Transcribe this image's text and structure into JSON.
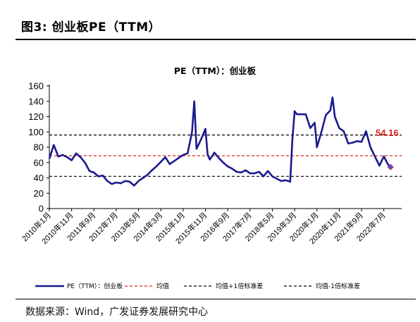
{
  "figure": {
    "title": "图3:  创业板PE（TTM）",
    "source": "数据来源：Wind，广发证券发展研究中心"
  },
  "colors": {
    "series": "#1a1a8c",
    "mean": "#e02020",
    "band": "#000000",
    "annotation": "#e02020"
  },
  "chart_data": {
    "type": "line",
    "title": "PE（TTM）：创业板",
    "ylim": [
      0,
      160
    ],
    "yticks": [
      0,
      20,
      40,
      60,
      80,
      100,
      120,
      140,
      160
    ],
    "xticks": [
      "2010年1月",
      "2010年11月",
      "2011年9月",
      "2012年7月",
      "2013年5月",
      "2014年3月",
      "2015年1月",
      "2015年11月",
      "2016年9月",
      "2017年7月",
      "2018年5月",
      "2019年3月",
      "2020年1月",
      "2020年11月",
      "2021年9月",
      "2022年7月"
    ],
    "grid": false,
    "legend_position": "bottom",
    "series": [
      {
        "name": "PE（TTM）：创业板",
        "x": [
          "2010-01",
          "2010-03",
          "2010-05",
          "2010-07",
          "2010-09",
          "2010-11",
          "2011-01",
          "2011-03",
          "2011-05",
          "2011-07",
          "2011-09",
          "2011-11",
          "2012-01",
          "2012-03",
          "2012-05",
          "2012-07",
          "2012-09",
          "2012-11",
          "2013-01",
          "2013-03",
          "2013-05",
          "2013-07",
          "2013-09",
          "2013-11",
          "2014-01",
          "2014-03",
          "2014-05",
          "2014-07",
          "2014-09",
          "2014-11",
          "2015-01",
          "2015-03",
          "2015-05",
          "2015-06",
          "2015-07",
          "2015-09",
          "2015-11",
          "2015-12",
          "2016-01",
          "2016-03",
          "2016-05",
          "2016-07",
          "2016-09",
          "2016-11",
          "2017-01",
          "2017-03",
          "2017-05",
          "2017-07",
          "2017-09",
          "2017-11",
          "2018-01",
          "2018-03",
          "2018-05",
          "2018-07",
          "2018-09",
          "2018-11",
          "2019-01",
          "2019-02",
          "2019-03",
          "2019-04",
          "2019-06",
          "2019-08",
          "2019-10",
          "2019-12",
          "2020-01",
          "2020-03",
          "2020-05",
          "2020-07",
          "2020-08",
          "2020-09",
          "2020-11",
          "2021-01",
          "2021-03",
          "2021-05",
          "2021-07",
          "2021-09",
          "2021-11",
          "2022-01",
          "2022-03",
          "2022-05",
          "2022-07",
          "2022-09",
          "2022-10"
        ],
        "values": [
          65,
          83,
          68,
          70,
          67,
          63,
          72,
          67,
          60,
          49,
          47,
          42,
          43,
          36,
          32,
          34,
          33,
          36,
          35,
          30,
          36,
          40,
          44,
          50,
          55,
          61,
          67,
          58,
          62,
          66,
          70,
          72,
          100,
          140,
          78,
          90,
          104,
          70,
          64,
          73,
          66,
          60,
          55,
          52,
          48,
          47,
          50,
          46,
          46,
          48,
          42,
          49,
          42,
          39,
          36,
          37,
          35,
          90,
          127,
          123,
          123,
          123,
          105,
          112,
          80,
          100,
          122,
          128,
          145,
          120,
          105,
          101,
          85,
          86,
          88,
          87,
          101,
          80,
          68,
          56,
          68,
          57,
          54.16
        ]
      }
    ],
    "reference_lines": [
      {
        "name": "均值",
        "value": 69,
        "style": "dashed",
        "color": "#e02020"
      },
      {
        "name": "均值+1倍标准差",
        "value": 96,
        "style": "dashed",
        "color": "#000000"
      },
      {
        "name": "均值-1倍标准差",
        "value": 42,
        "style": "dashed",
        "color": "#000000"
      }
    ],
    "annotation": {
      "text": "54.16",
      "value": 54.16
    }
  }
}
